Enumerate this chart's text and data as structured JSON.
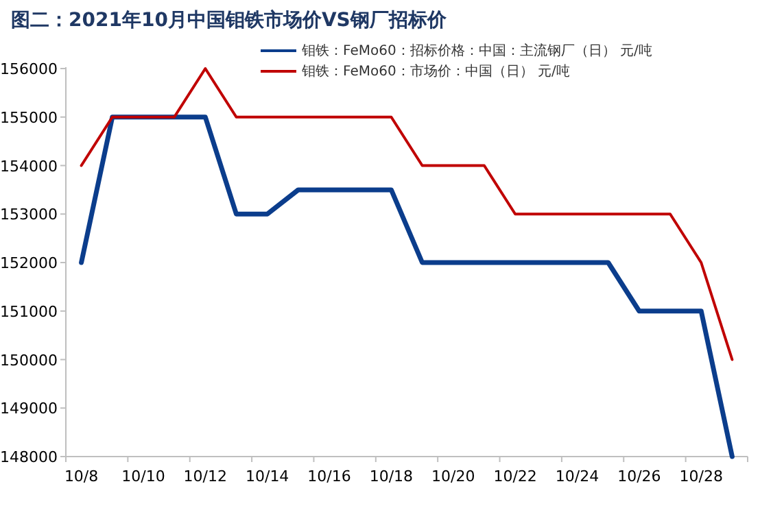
{
  "chart_data": {
    "type": "line",
    "title": "图二：2021年10月中国钼铁市场价VS钢厂招标价",
    "categories": [
      "10/8",
      null,
      "10/10",
      null,
      "10/12",
      null,
      "10/14",
      null,
      "10/16",
      null,
      "10/18",
      null,
      "10/20",
      null,
      "10/22",
      null,
      "10/24",
      null,
      "10/26",
      null,
      "10/28",
      null
    ],
    "series": [
      {
        "name": "钼铁：FeMo60：招标价格：中国：主流钢厂（日） 元/吨",
        "color": "#0b3d8c",
        "values": [
          152000,
          155000,
          155000,
          155000,
          155000,
          153000,
          153000,
          153500,
          153500,
          153500,
          153500,
          152000,
          152000,
          152000,
          152000,
          152000,
          152000,
          152000,
          151000,
          151000,
          151000,
          148000
        ]
      },
      {
        "name": "钼铁：FeMo60：市场价：中国（日） 元/吨",
        "color": "#c00000",
        "values": [
          154000,
          155000,
          155000,
          155000,
          156000,
          155000,
          155000,
          155000,
          155000,
          155000,
          155000,
          154000,
          154000,
          154000,
          153000,
          153000,
          153000,
          153000,
          153000,
          153000,
          152000,
          150000
        ]
      }
    ],
    "ylim": [
      148000,
      156000
    ],
    "yticks": [
      148000,
      149000,
      150000,
      151000,
      152000,
      153000,
      154000,
      155000,
      156000
    ],
    "legend": "top",
    "grid": false
  }
}
